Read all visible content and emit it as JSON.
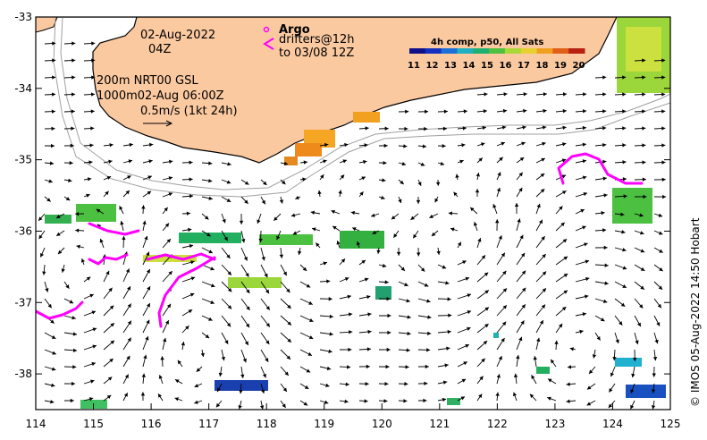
{
  "map": {
    "date": "02-Aug-2022",
    "hour": "04Z",
    "line_200m": "200m  NRT00 GSL",
    "line_1000m": "1000m02-Aug 06:00Z",
    "scale_text": "0.5m/s (1kt 24h)",
    "argo_label": "Argo",
    "drifters_label": "drifters@12h",
    "drifters_to": "to 03/08 12Z",
    "colorbar_title": "4h comp, p50, All Sats",
    "colorbar_ticks": [
      "11",
      "12",
      "13",
      "14",
      "15",
      "16",
      "17",
      "18",
      "19",
      "20"
    ],
    "credit": "© IMOS 05-Aug-2022 14:50 Hobart",
    "lon_ticks": [
      "114",
      "115",
      "116",
      "117",
      "118",
      "119",
      "120",
      "121",
      "122",
      "123",
      "124",
      "125"
    ],
    "lat_ticks": [
      "-33",
      "-34",
      "-35",
      "-36",
      "-37",
      "-38"
    ],
    "lon_range": [
      114,
      125
    ],
    "lat_range": [
      -38.5,
      -33
    ],
    "colors": {
      "land": "#fbc9a0",
      "drifter": "#ff00ff",
      "arrow": "#000000",
      "bathy": "#a0a0a0"
    }
  }
}
